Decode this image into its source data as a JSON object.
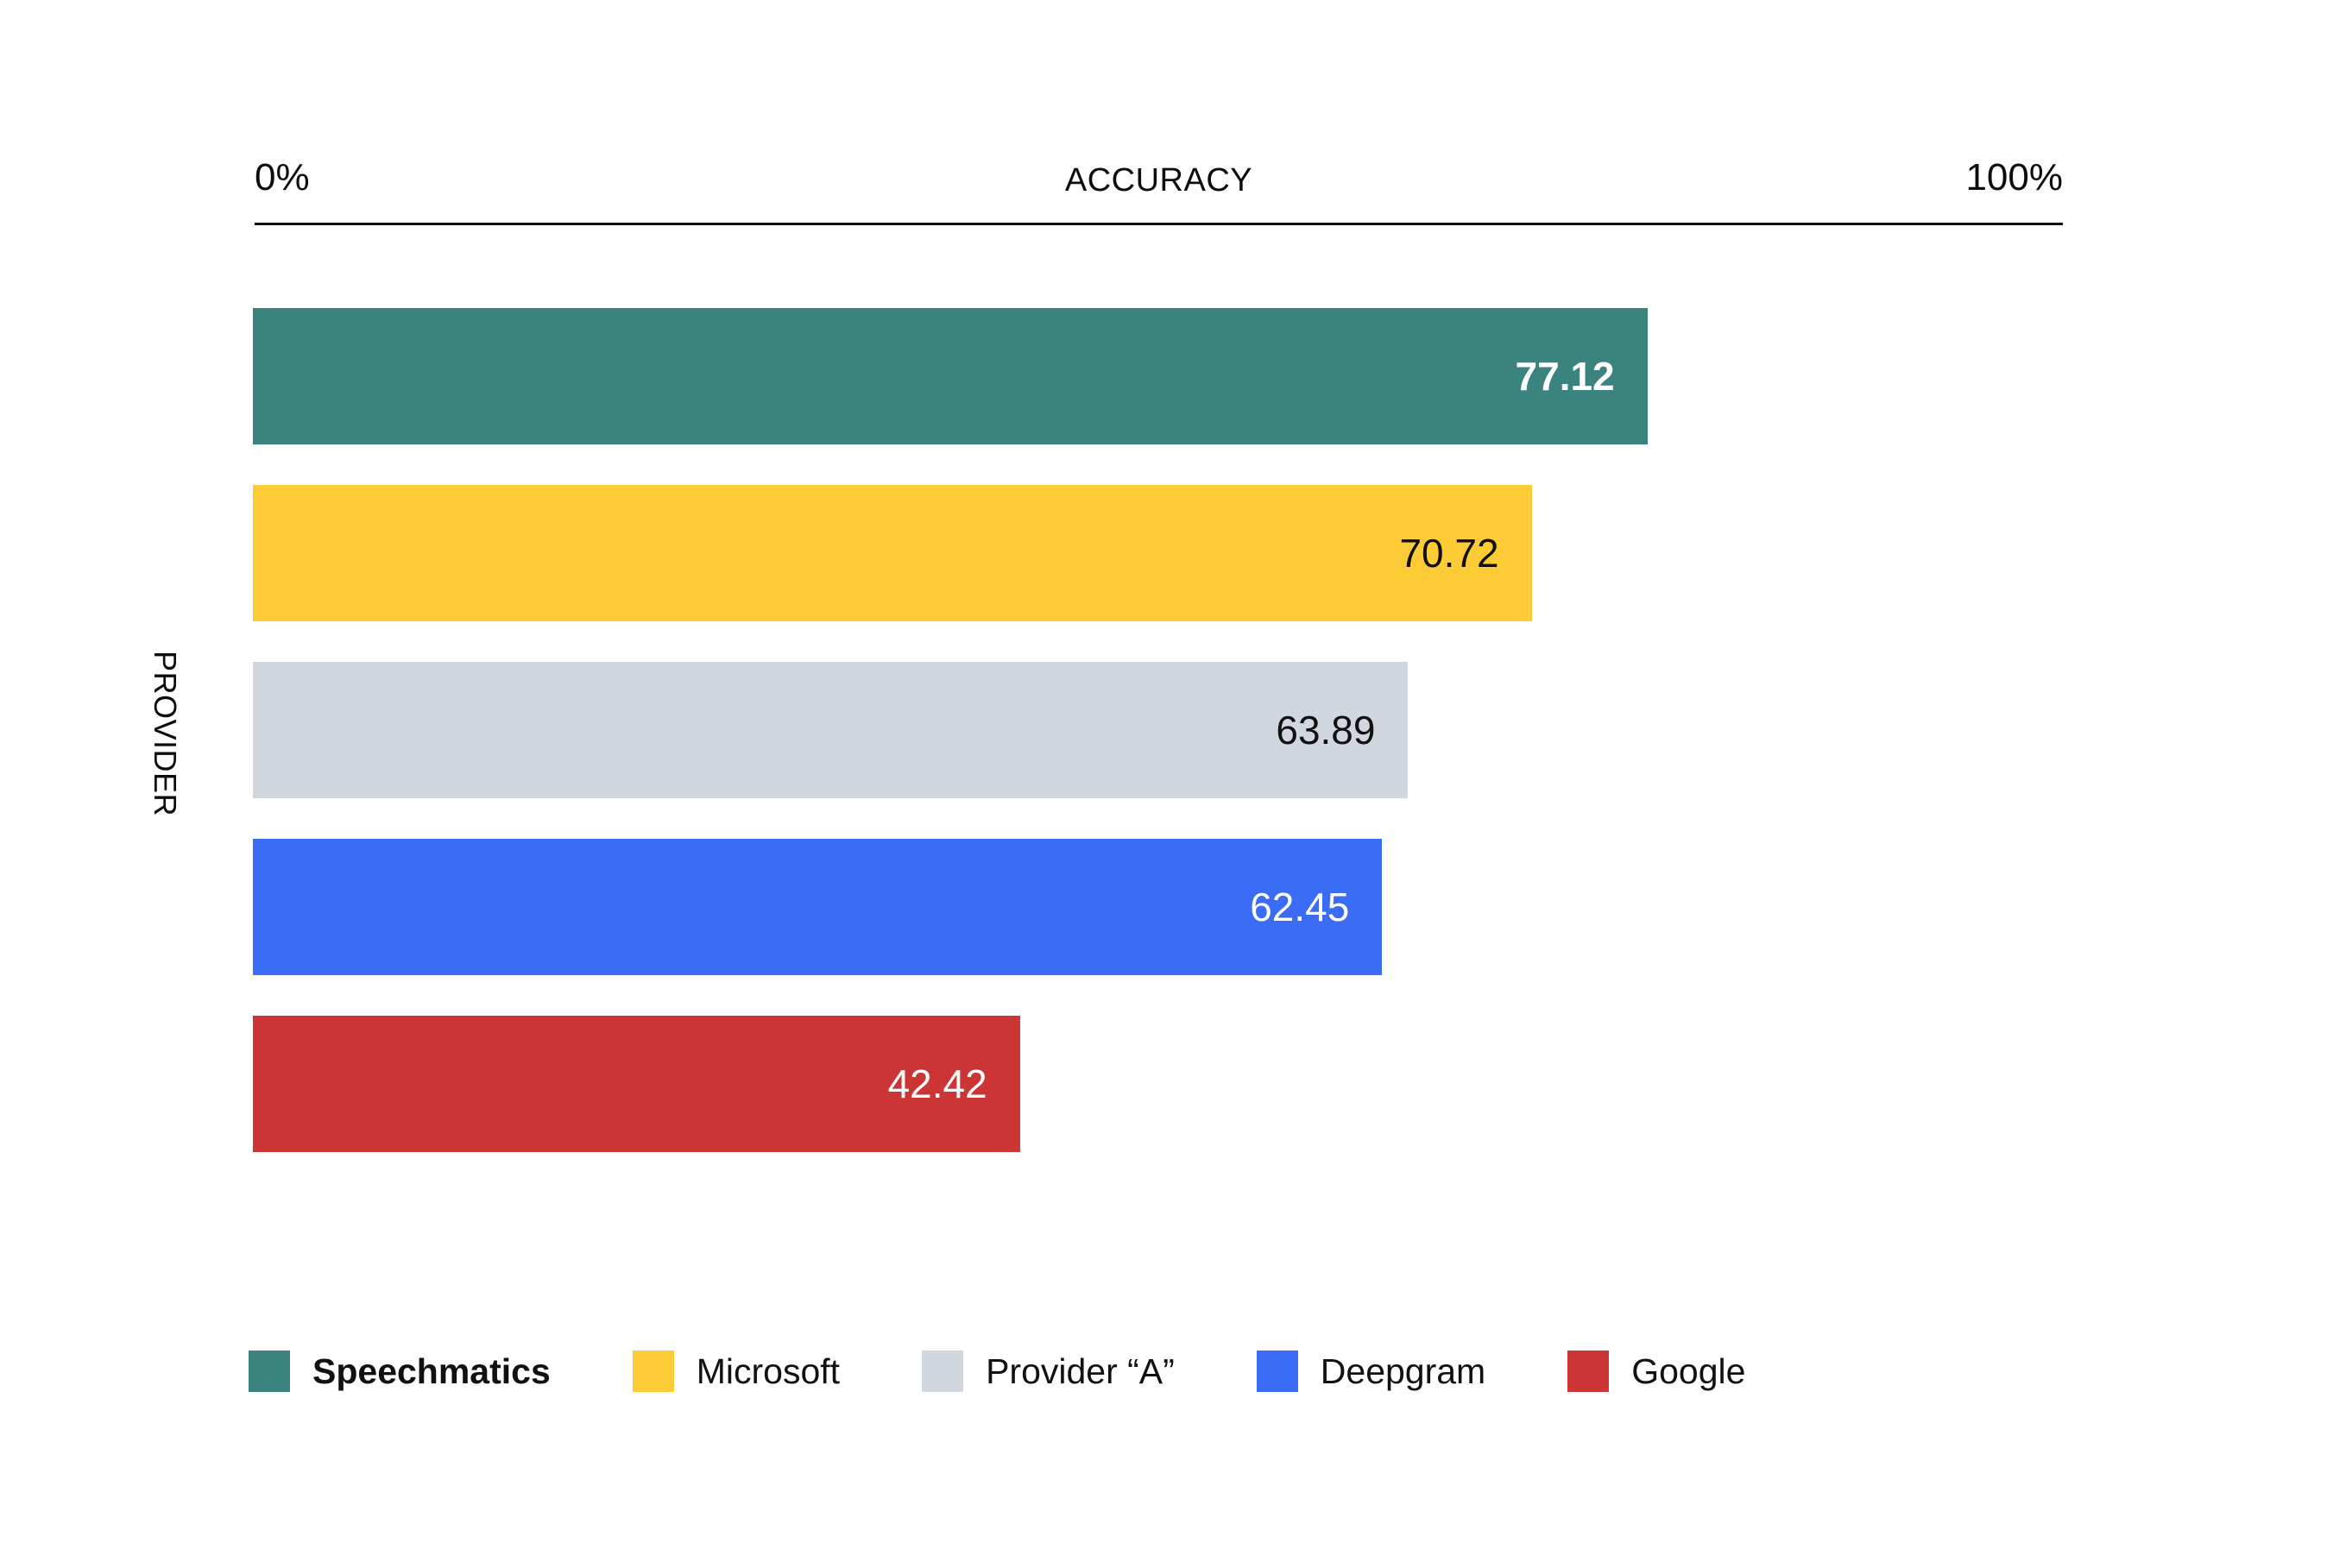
{
  "axis": {
    "min_label": "0%",
    "max_label": "100%",
    "title": "ACCURACY"
  },
  "y_axis_label": "PROVIDER",
  "chart_data": {
    "type": "bar",
    "orientation": "horizontal",
    "title": "ACCURACY",
    "xlabel": "ACCURACY",
    "ylabel": "PROVIDER",
    "xlim": [
      0,
      100
    ],
    "grid": false,
    "legend_position": "bottom",
    "categories": [
      "Speechmatics",
      "Microsoft",
      "Provider “A”",
      "Deepgram",
      "Google"
    ],
    "values": [
      77.12,
      70.72,
      63.89,
      62.45,
      42.42
    ],
    "value_labels": [
      "77.12",
      "70.72",
      "63.89",
      "62.45",
      "42.42"
    ],
    "bar_colors": [
      "#3A837F",
      "#FDCB35",
      "#D1D7DE",
      "#3B6CF5",
      "#CB3535"
    ],
    "value_label_colors": [
      "#FFFFFF",
      "#111111",
      "#111111",
      "#FFFFFF",
      "#FFFFFF"
    ],
    "value_label_bold": [
      true,
      false,
      false,
      false,
      false
    ]
  },
  "legend": {
    "items": [
      {
        "label": "Speechmatics",
        "color": "#3A837F",
        "bold": true
      },
      {
        "label": "Microsoft",
        "color": "#FDCB35",
        "bold": false
      },
      {
        "label": "Provider “A”",
        "color": "#D1D7DE",
        "bold": false
      },
      {
        "label": "Deepgram",
        "color": "#3B6CF5",
        "bold": false
      },
      {
        "label": "Google",
        "color": "#CB3535",
        "bold": false
      }
    ]
  }
}
